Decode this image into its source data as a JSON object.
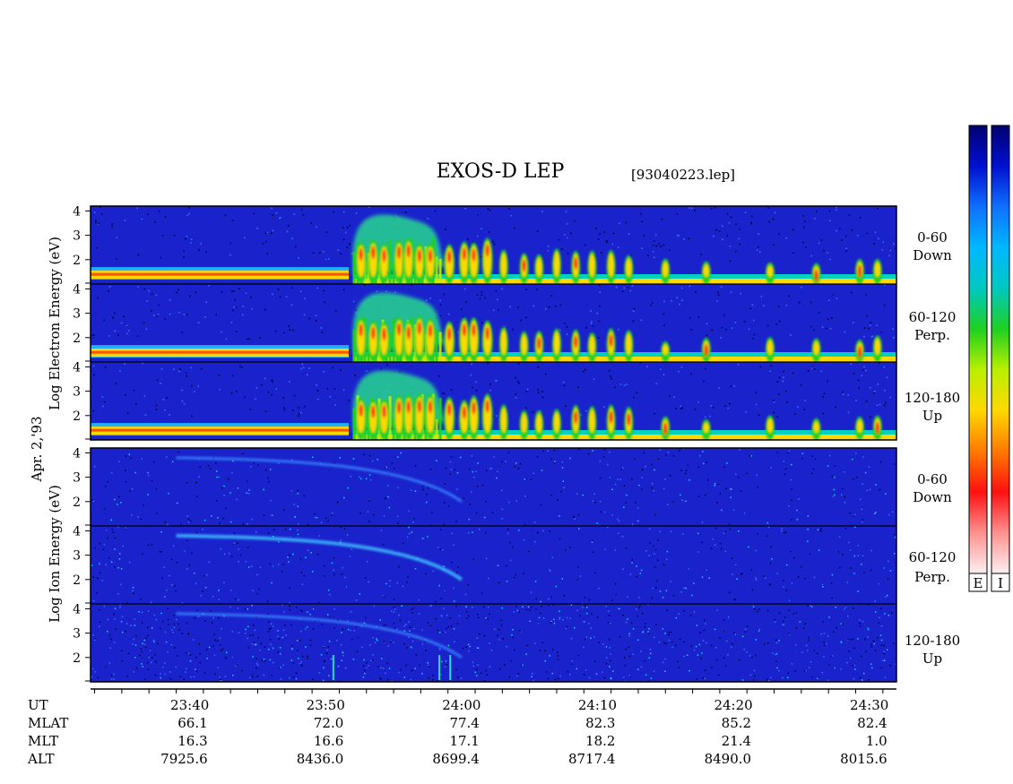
{
  "header": {
    "title": "EXOS-D LEP",
    "file": "[93040223.lep]"
  },
  "colorbars": [
    {
      "label": "E"
    },
    {
      "label": "I"
    }
  ],
  "colors": {
    "background_spectrogram": "#1a22cc",
    "colorscale": [
      "#fff0f0",
      "#ff9090",
      "#ff1010",
      "#ff7a00",
      "#ffd800",
      "#b8f000",
      "#20d020",
      "#00c8c0",
      "#00b8ff",
      "#1070ff",
      "#0010d0",
      "#000070"
    ]
  },
  "date_label": "Apr. 2,'93",
  "electron": {
    "ylabel": "Log  Electron  Energy (eV)",
    "panels": [
      {
        "range": "0-60",
        "dir": "Down"
      },
      {
        "range": "60-120",
        "dir": "Perp."
      },
      {
        "range": "120-180",
        "dir": "Up"
      }
    ]
  },
  "ion": {
    "ylabel": "Log  Ion  Energy (eV)",
    "panels": [
      {
        "range": "0-60",
        "dir": "Down"
      },
      {
        "range": "60-120",
        "dir": "Perp."
      },
      {
        "range": "120-180",
        "dir": "Up"
      }
    ]
  },
  "chart_data": {
    "type": "heatmap",
    "title": "EXOS-D LEP",
    "ylim": [
      1,
      4.2
    ],
    "yticks": [
      2,
      3,
      4
    ],
    "xlim_minutes": [
      1412.7,
      1472.0
    ],
    "time_labels": [
      "23:40",
      "23:50",
      "24:00",
      "24:10",
      "24:20",
      "24:30"
    ],
    "time_minutes": [
      1420,
      1430,
      1440,
      1450,
      1460,
      1470
    ],
    "row_labels": [
      "UT",
      "MLAT",
      "MLT",
      "ALT"
    ],
    "MLAT": [
      "66.1",
      "72.0",
      "77.4",
      "82.3",
      "85.2",
      "82.4"
    ],
    "MLT": [
      "16.3",
      "16.6",
      "17.1",
      "18.2",
      "21.4",
      "1.0"
    ],
    "ALT": [
      "7925.6",
      "8436.0",
      "8699.4",
      "8717.4",
      "8490.0",
      "8015.6"
    ],
    "electron_features": {
      "band_energy_log": 1.4,
      "band_end_minutes": 1431.7,
      "burst_start_minutes": 1432,
      "dense_burst_end_minutes": 1438.5,
      "cloud_end_minutes": 1438.8,
      "spikes_minutes": [
        1432.6,
        1433.5,
        1434.3,
        1435.4,
        1436.1,
        1436.9,
        1437.7,
        1439.1,
        1440.2,
        1440.9,
        1441.9,
        1443.1,
        1444.6,
        1445.7,
        1447.0,
        1448.4,
        1449.6,
        1451.0,
        1452.3,
        1455.0,
        1458.0,
        1462.7,
        1466.1,
        1469.3,
        1470.6
      ]
    },
    "ion_features": {
      "arc_start_minutes": 1419,
      "arc_end_minutes": 1440,
      "arc_start_energy_log": 3.8,
      "arc_end_energy_log": 2.0
    }
  }
}
